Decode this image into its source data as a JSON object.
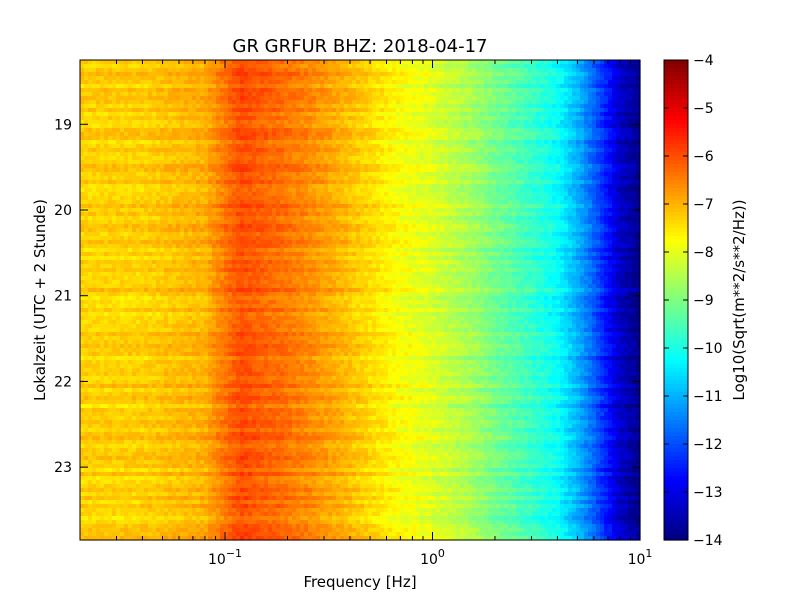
{
  "chart_data": {
    "type": "heatmap",
    "title": "GR GRFUR BHZ: 2018-04-17",
    "xlabel": "Frequency [Hz]",
    "ylabel": "Lokalzeit (UTC + 2 Stunde)",
    "x_scale": "log",
    "xlim": [
      0.02,
      10
    ],
    "ylim": [
      18.25,
      23.85
    ],
    "y_inverted": true,
    "x_ticks": [
      {
        "value": 0.1,
        "label": "10",
        "exp": "−1"
      },
      {
        "value": 1,
        "label": "10",
        "exp": "0"
      },
      {
        "value": 10,
        "label": "10",
        "exp": "1"
      }
    ],
    "y_ticks": [
      {
        "value": 19,
        "label": "19"
      },
      {
        "value": 20,
        "label": "20"
      },
      {
        "value": 21,
        "label": "21"
      },
      {
        "value": 22,
        "label": "22"
      },
      {
        "value": 23,
        "label": "23"
      }
    ],
    "colorbar": {
      "label": "Log10(Sqrt(m**2/s**2/Hz))",
      "range": [
        -14,
        -4
      ],
      "colormap": "jet",
      "ticks": [
        "−4",
        "−5",
        "−6",
        "−7",
        "−8",
        "−9",
        "−10",
        "−11",
        "−12",
        "−13",
        "−14"
      ]
    },
    "spectrum_profile": [
      {
        "freq": 0.02,
        "value": -7.3
      },
      {
        "freq": 0.04,
        "value": -7.3
      },
      {
        "freq": 0.06,
        "value": -7.1
      },
      {
        "freq": 0.08,
        "value": -7.0
      },
      {
        "freq": 0.1,
        "value": -6.4
      },
      {
        "freq": 0.12,
        "value": -6.0
      },
      {
        "freq": 0.15,
        "value": -6.2
      },
      {
        "freq": 0.2,
        "value": -6.4
      },
      {
        "freq": 0.3,
        "value": -6.8
      },
      {
        "freq": 0.5,
        "value": -7.4
      },
      {
        "freq": 0.7,
        "value": -7.8
      },
      {
        "freq": 1.0,
        "value": -8.1
      },
      {
        "freq": 1.5,
        "value": -8.6
      },
      {
        "freq": 2.0,
        "value": -9.1
      },
      {
        "freq": 3.0,
        "value": -9.7
      },
      {
        "freq": 4.0,
        "value": -10.2
      },
      {
        "freq": 5.0,
        "value": -11.0
      },
      {
        "freq": 6.0,
        "value": -11.8
      },
      {
        "freq": 7.0,
        "value": -12.6
      },
      {
        "freq": 8.0,
        "value": -13.3
      },
      {
        "freq": 10.0,
        "value": -13.9
      }
    ],
    "grid": false
  }
}
